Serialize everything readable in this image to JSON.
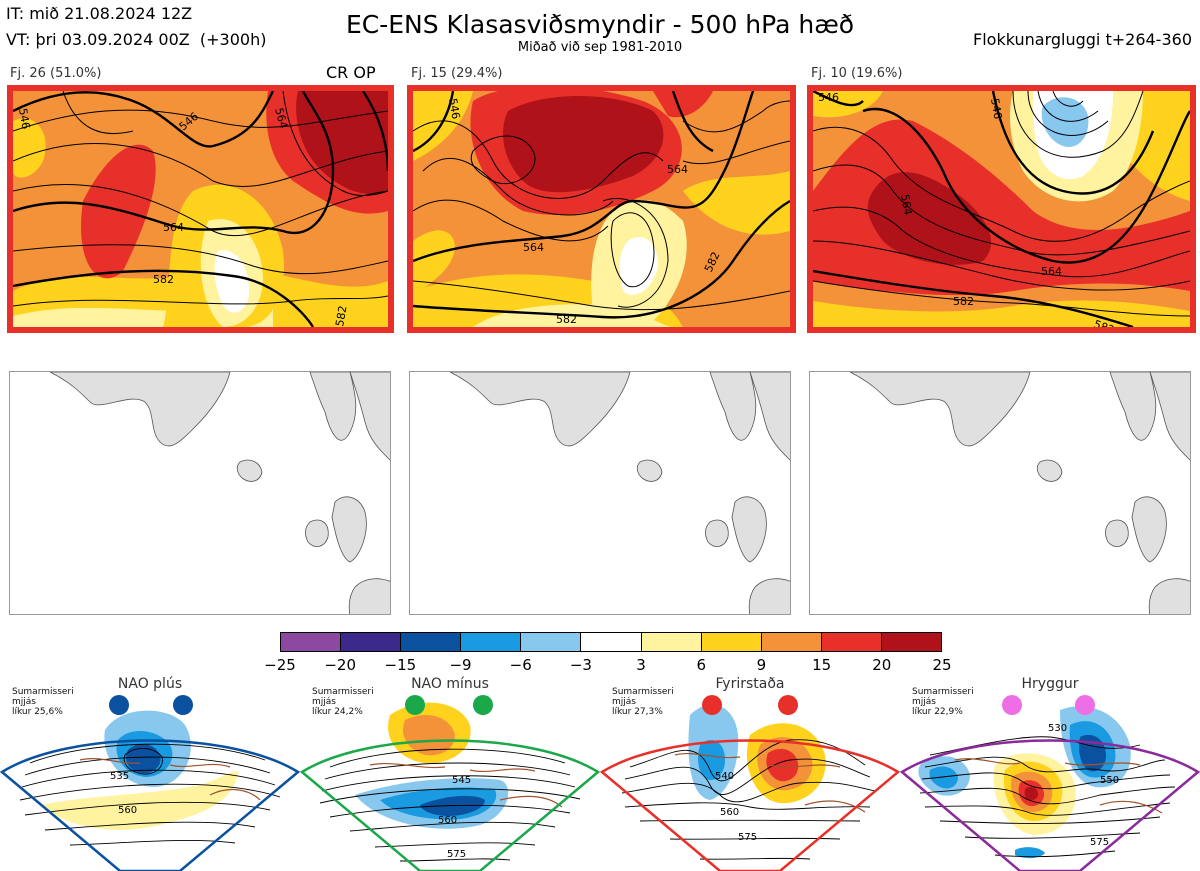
{
  "header": {
    "it": "IT: mið 21.08.2024 12Z",
    "vt": "VT: þri 03.09.2024 00Z  (+300h)",
    "title": "EC-ENS Klasasviðsmyndir - 500 hPa hæð",
    "subtitle": "Miðað við sep 1981-2010",
    "window": "Flokkunargluggi t+264-360"
  },
  "panels": [
    {
      "label": "Fj. 26 (51.0%)",
      "tag": "CR OP",
      "contour_labels": [
        "546",
        "564",
        "582",
        "546",
        "564",
        "582"
      ]
    },
    {
      "label": "Fj. 15 (29.4%)",
      "tag": "",
      "contour_labels": [
        "546",
        "564",
        "582",
        "564",
        "582"
      ]
    },
    {
      "label": "Fj. 10 (19.6%)",
      "tag": "",
      "contour_labels": [
        "546",
        "564",
        "582",
        "546",
        "564",
        "582"
      ]
    }
  ],
  "colorbar": {
    "ticks": [
      "−25",
      "−20",
      "−15",
      "−9",
      "−6",
      "−3",
      "3",
      "6",
      "9",
      "15",
      "20",
      "25"
    ],
    "colors": [
      "#8b4aa0",
      "#3b2a8c",
      "#0a52a0",
      "#1a9ae0",
      "#88c8ee",
      "#ffffff",
      "#fff3a0",
      "#ffd21e",
      "#f4923a",
      "#e8302a",
      "#b0121a"
    ]
  },
  "regimes": [
    {
      "name": "NAO plús",
      "season": "Sumarmisseri",
      "metric": "mjjás",
      "prob": "líkur 25,6%",
      "dot_color": "#0a52a0",
      "frame_color": "#0a52a0",
      "labels": [
        "535",
        "560"
      ]
    },
    {
      "name": "NAO mínus",
      "season": "Sumarmisseri",
      "metric": "mjjás",
      "prob": "líkur 24,2%",
      "dot_color": "#1aa84a",
      "frame_color": "#1aa84a",
      "labels": [
        "545",
        "560",
        "575"
      ]
    },
    {
      "name": "Fyrirstaða",
      "season": "Sumarmisseri",
      "metric": "mjjás",
      "prob": "líkur 27,3%",
      "dot_color": "#e8302a",
      "frame_color": "#e8302a",
      "labels": [
        "540",
        "560",
        "575"
      ]
    },
    {
      "name": "Hryggur",
      "season": "Sumarmisseri",
      "metric": "mjjás",
      "prob": "líkur 22,9%",
      "dot_color": "#ee6ee6",
      "frame_color": "#8b2a9a",
      "labels": [
        "530",
        "550",
        "575"
      ]
    }
  ]
}
